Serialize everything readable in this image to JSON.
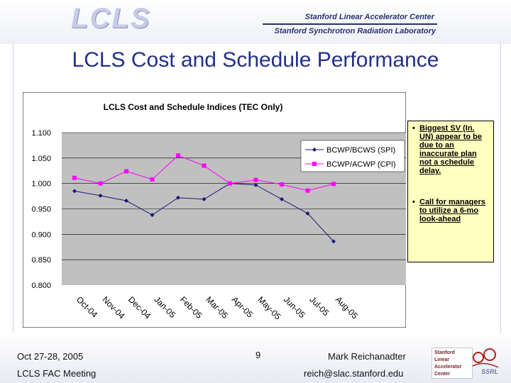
{
  "header": {
    "logo": "LCLS",
    "line1": "Stanford Linear Accelerator Center",
    "line2": "Stanford Synchrotron Radiation Laboratory"
  },
  "slide_title": "LCLS Cost and Schedule Performance",
  "chart_data": {
    "type": "line",
    "title": "LCLS Cost and Schedule Indices (TEC Only)",
    "xlabel": "",
    "ylabel": "",
    "categories": [
      "Oct-04",
      "Nov-04",
      "Dec-04",
      "Jan-05",
      "Feb-05",
      "Mar-05",
      "Apr-05",
      "May-05",
      "Jun-05",
      "Jul-05",
      "Aug-05"
    ],
    "ylim": [
      0.8,
      1.1
    ],
    "yticks": [
      "0.800",
      "0.850",
      "0.900",
      "0.950",
      "1.000",
      "1.050",
      "1.100"
    ],
    "grid": true,
    "legend_position": "top-right",
    "series": [
      {
        "name": "BCWP/BCWS (SPI)",
        "color": "#1a1a7a",
        "marker": "diamond",
        "values": [
          0.985,
          0.976,
          0.966,
          0.938,
          0.972,
          0.969,
          1.0,
          0.997,
          0.969,
          0.941,
          0.886
        ]
      },
      {
        "name": "BCWP/ACWP (CPI)",
        "color": "#ff00ff",
        "marker": "square",
        "values": [
          1.011,
          1.0,
          1.024,
          1.008,
          1.055,
          1.035,
          1.0,
          1.007,
          0.998,
          0.986,
          0.999
        ]
      }
    ],
    "background_color": "#c0c0c0"
  },
  "notes": [
    "Biggest SV (In. UN) appear to be due to an inaccurate plan not a schedule delay.",
    "Call for managers to utilize a 6-mo look-ahead"
  ],
  "footer": {
    "date": "Oct 27-28, 2005",
    "meeting": "LCLS FAC Meeting",
    "page": "9",
    "presenter": "Mark Reichanadter",
    "email": "reich@slac.stanford.edu"
  },
  "stanford_logo": {
    "lines": [
      "Stanford",
      "Linear",
      "Accelerator",
      "Center"
    ],
    "badge": "SSRL"
  }
}
